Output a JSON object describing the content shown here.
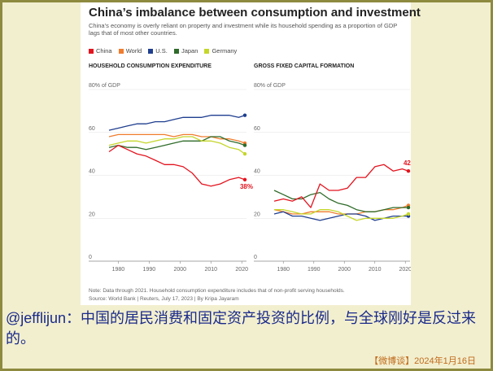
{
  "graphic": {
    "title": "China’s imbalance between consumption and investment",
    "subtitle": "China’s economy is overly reliant on property and investment while its household spending as a proportion of GDP lags that of most other countries.",
    "legend": [
      {
        "name": "China",
        "color": "#e3141f"
      },
      {
        "name": "World",
        "color": "#f07d2e"
      },
      {
        "name": "U.S.",
        "color": "#1f3e8f"
      },
      {
        "name": "Japan",
        "color": "#2f6b2a"
      },
      {
        "name": "Germany",
        "color": "#c5d62b"
      }
    ],
    "note": "Note: Data through 2021. Household consumption expenditure includes that of non-profit serving households.",
    "source": "Source: World Bank | Reuters, July 17, 2023 | By Kripa Jayaram"
  },
  "caption": {
    "text": "@jefflijun：中国的居民消费和固定资产投资的比例，与全球刚好是反过来的。",
    "stamp": "【微博谈】2024年1月16日"
  },
  "chart_data": [
    {
      "type": "line",
      "title": "HOUSEHOLD CONSUMPTION EXPENDITURE",
      "ylim": [
        0,
        80
      ],
      "xlim": [
        1977,
        2021
      ],
      "y_ticks": [
        "0",
        "20",
        "40",
        "60",
        "80% of GDP"
      ],
      "x_ticks": [
        1980,
        1990,
        2000,
        2010,
        2020
      ],
      "end_label": "38%",
      "x": [
        1977,
        1980,
        1983,
        1986,
        1989,
        1992,
        1995,
        1998,
        2001,
        2004,
        2007,
        2010,
        2013,
        2016,
        2019,
        2021
      ],
      "series": [
        {
          "name": "China",
          "color": "#e3141f",
          "values": [
            51,
            54,
            52,
            50,
            49,
            47,
            45,
            45,
            44,
            41,
            36,
            35,
            36,
            38,
            39,
            38
          ]
        },
        {
          "name": "World",
          "color": "#f07d2e",
          "values": [
            58,
            59,
            59,
            59,
            59,
            59,
            59,
            58,
            59,
            59,
            58,
            58,
            57,
            57,
            56,
            55
          ]
        },
        {
          "name": "U.S.",
          "color": "#1f3e8f",
          "values": [
            61,
            62,
            63,
            64,
            64,
            65,
            65,
            66,
            67,
            67,
            67,
            68,
            68,
            68,
            67,
            68
          ]
        },
        {
          "name": "Japan",
          "color": "#2f6b2a",
          "values": [
            53,
            54,
            53,
            53,
            52,
            53,
            54,
            55,
            56,
            56,
            56,
            58,
            58,
            56,
            55,
            54
          ]
        },
        {
          "name": "Germany",
          "color": "#c5d62b",
          "values": [
            54,
            55,
            56,
            56,
            55,
            56,
            57,
            57,
            58,
            58,
            56,
            56,
            55,
            53,
            52,
            50
          ]
        }
      ]
    },
    {
      "type": "line",
      "title": "GROSS FIXED CAPITAL FORMATION",
      "ylim": [
        0,
        80
      ],
      "xlim": [
        1977,
        2021
      ],
      "y_ticks": [
        "0",
        "20",
        "40",
        "60",
        "80% of GDP"
      ],
      "x_ticks": [
        1980,
        1990,
        2000,
        2010,
        2020
      ],
      "end_label": "42%",
      "x": [
        1977,
        1980,
        1983,
        1986,
        1989,
        1992,
        1995,
        1998,
        2001,
        2004,
        2007,
        2010,
        2013,
        2016,
        2019,
        2021
      ],
      "series": [
        {
          "name": "China",
          "color": "#e3141f",
          "values": [
            28,
            29,
            28,
            30,
            25,
            36,
            33,
            33,
            34,
            39,
            39,
            44,
            45,
            42,
            43,
            42
          ]
        },
        {
          "name": "World",
          "color": "#f07d2e",
          "values": [
            24,
            23,
            22,
            22,
            23,
            23,
            23,
            22,
            22,
            22,
            23,
            23,
            24,
            24,
            25,
            26
          ]
        },
        {
          "name": "U.S.",
          "color": "#1f3e8f",
          "values": [
            22,
            23,
            21,
            21,
            20,
            19,
            20,
            21,
            22,
            22,
            21,
            19,
            20,
            21,
            21,
            21
          ]
        },
        {
          "name": "Japan",
          "color": "#2f6b2a",
          "values": [
            33,
            31,
            29,
            29,
            31,
            32,
            29,
            27,
            26,
            24,
            23,
            23,
            24,
            25,
            25,
            25
          ]
        },
        {
          "name": "Germany",
          "color": "#c5d62b",
          "values": [
            24,
            24,
            23,
            22,
            22,
            24,
            24,
            23,
            21,
            19,
            20,
            20,
            20,
            20,
            21,
            22
          ]
        }
      ]
    }
  ]
}
